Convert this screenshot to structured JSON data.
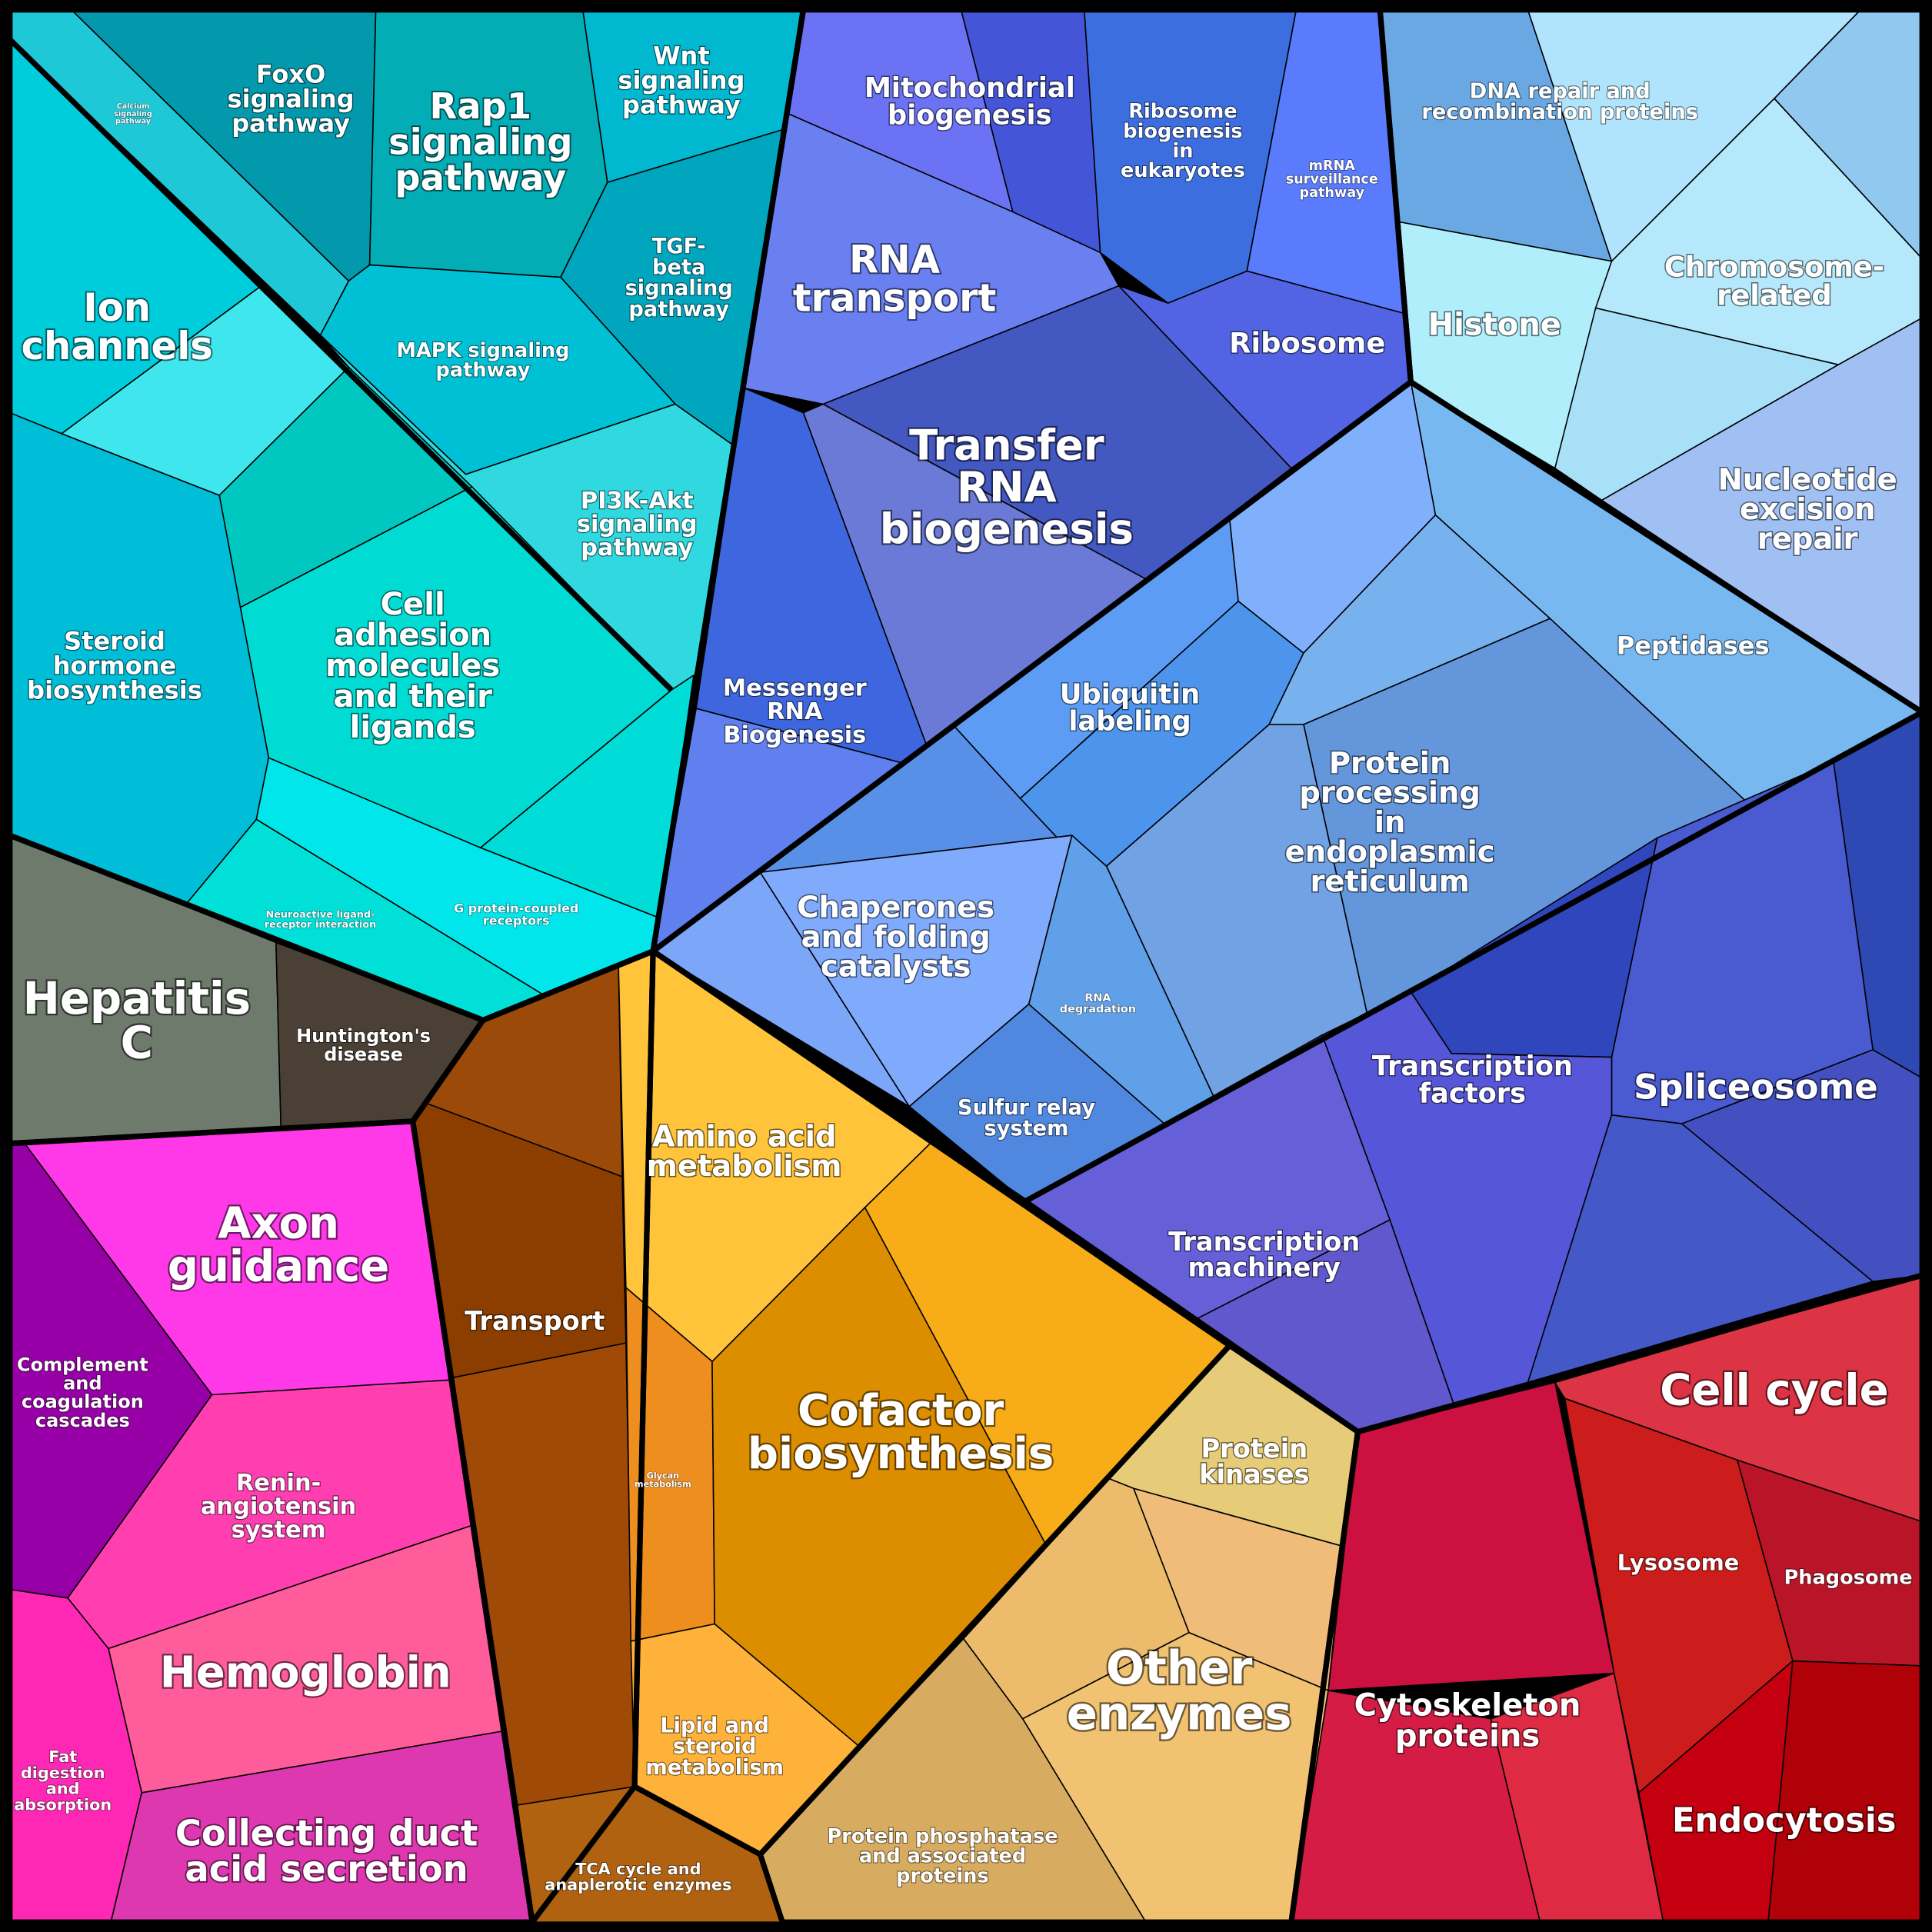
{
  "cells": [
    {
      "id": "calcium",
      "label": "Calcium\nsignaling\npathway",
      "color": "#1fc8d6"
    },
    {
      "id": "foxo",
      "label": "FoxO\nsignaling\npathway",
      "color": "#0399ac"
    },
    {
      "id": "rap1",
      "label": "Rap1\nsignaling\npathway",
      "color": "#02adb6"
    },
    {
      "id": "wnt",
      "label": "Wnt\nsignaling\npathway",
      "color": "#00b8d0"
    },
    {
      "id": "tgf",
      "label": "TGF-\nbeta\nsignaling\npathway",
      "color": "#00a6bd"
    },
    {
      "id": "mapk",
      "label": "MAPK signaling\npathway",
      "color": "#00c0d6"
    },
    {
      "id": "pi3k",
      "label": "PI3K-Akt\nsignaling\npathway",
      "color": "#30d9e0"
    },
    {
      "id": "ion",
      "label": "Ion\nchannels",
      "color": "#00cddb"
    },
    {
      "id": "ion2",
      "label": "",
      "color": "#40e6ee"
    },
    {
      "id": "cam1",
      "label": "",
      "color": "#00c8c0"
    },
    {
      "id": "cam",
      "label": "Cell\nadhesion\nmolecules\nand their\nligands",
      "color": "#00dcd4"
    },
    {
      "id": "cam3",
      "label": "",
      "color": "#00dcd8"
    },
    {
      "id": "gpcr",
      "label": "G protein-coupled\nreceptors",
      "color": "#00e6ea"
    },
    {
      "id": "neuro",
      "label": "Neuroactive ligand-\nreceptor interaction",
      "color": "#00e0d8"
    },
    {
      "id": "steroid",
      "label": "Steroid\nhormone\nbiosynthesis",
      "color": "#00bdd8"
    },
    {
      "id": "hepc",
      "label": "Hepatitis\nC",
      "color": "#6e7b6c"
    },
    {
      "id": "hunt",
      "label": "Huntington's\ndisease",
      "color": "#4a4035"
    },
    {
      "id": "complement",
      "label": "Complement\nand\ncoagulation\ncascades",
      "color": "#9600a6"
    },
    {
      "id": "axon",
      "label": "Axon\nguidance",
      "color": "#ff38e8"
    },
    {
      "id": "renin",
      "label": "Renin-\nangiotensin\nsystem",
      "color": "#ff3fb0"
    },
    {
      "id": "hemo",
      "label": "Hemoglobin",
      "color": "#ff5c9c"
    },
    {
      "id": "fat",
      "label": "Fat\ndigestion\nand\nabsorption",
      "color": "#ff28b4"
    },
    {
      "id": "collecting",
      "label": "Collecting duct\nacid secretion",
      "color": "#de38b0"
    },
    {
      "id": "tr1",
      "label": "",
      "color": "#9c4a0a"
    },
    {
      "id": "transport",
      "label": "Transport",
      "color": "#8b3e00"
    },
    {
      "id": "tr3",
      "label": "",
      "color": "#a04a08"
    },
    {
      "id": "tca",
      "label": "TCA cycle and\nanaplerotic enzymes",
      "color": "#b06210"
    },
    {
      "id": "amino",
      "label": "Amino acid\nmetabolism",
      "color": "#ffc43a"
    },
    {
      "id": "glycan",
      "label": "Glycan\nmetabolism",
      "color": "#ee8e1e"
    },
    {
      "id": "cofactor",
      "label": "Cofactor\nbiosynthesis",
      "color": "#dd8e00"
    },
    {
      "id": "orange2",
      "label": "",
      "color": "#f8ac18"
    },
    {
      "id": "lipid",
      "label": "Lipid and\nsteroid\nmetabolism",
      "color": "#ffb23a"
    },
    {
      "id": "kinases",
      "label": "Protein\nkinases",
      "color": "#e6cc78"
    },
    {
      "id": "oe1",
      "label": "",
      "color": "#f0bc7a"
    },
    {
      "id": "oe2",
      "label": "",
      "color": "#ecbc6c"
    },
    {
      "id": "other",
      "label": "Other\nenzymes",
      "color": "#f0c272"
    },
    {
      "id": "phosphatase",
      "label": "Protein phosphatase\nand associated\nproteins",
      "color": "#d8ac60"
    },
    {
      "id": "cyto",
      "label": "Cytoskeleton\nproteins",
      "color": "#cc1040"
    },
    {
      "id": "cyto2",
      "label": "",
      "color": "#d41c44"
    },
    {
      "id": "cyto3",
      "label": "",
      "color": "#de2a42"
    },
    {
      "id": "cellcycle",
      "label": "Cell cycle",
      "color": "#dc3444"
    },
    {
      "id": "lysosome",
      "label": "Lysosome",
      "color": "#cc1c1c"
    },
    {
      "id": "phagosome",
      "label": "Phagosome",
      "color": "#ba1428"
    },
    {
      "id": "endo",
      "label": "Endocytosis",
      "color": "#c40010"
    },
    {
      "id": "endo2",
      "label": "",
      "color": "#b00008"
    },
    {
      "id": "mito",
      "label": "Mitochondrial\nbiogenesis",
      "color": "#6c72f4"
    },
    {
      "id": "mito2",
      "label": "",
      "color": "#4455d8"
    },
    {
      "id": "ribobio",
      "label": "Ribosome\nbiogenesis\nin\neukaryotes",
      "color": "#3c6ee0"
    },
    {
      "id": "mrnasurv",
      "label": "mRNA\nsurveillance\npathway",
      "color": "#5a7cfc"
    },
    {
      "id": "rnatransport",
      "label": "RNA\ntransport",
      "color": "#6a80f0"
    },
    {
      "id": "ribosome",
      "label": "Ribosome",
      "color": "#5264e4"
    },
    {
      "id": "trna",
      "label": "Transfer\nRNA\nbiogenesis",
      "color": "#4458c2"
    },
    {
      "id": "trna2",
      "label": "",
      "color": "#6a7ad6"
    },
    {
      "id": "mrnabio",
      "label": "Messenger\nRNA\nBiogenesis",
      "color": "#3e66de"
    },
    {
      "id": "mrnabio2",
      "label": "",
      "color": "#6080f0"
    },
    {
      "id": "dnarepair",
      "label": "DNA repair and\nrecombination proteins",
      "color": "#6aa8e4"
    },
    {
      "id": "dna2",
      "label": "",
      "color": "#b0e4fc"
    },
    {
      "id": "dna3",
      "label": "",
      "color": "#90c8f0"
    },
    {
      "id": "histone",
      "label": "Histone",
      "color": "#b0eefc"
    },
    {
      "id": "chromosome",
      "label": "Chromosome-\nrelated",
      "color": "#b4e8fa"
    },
    {
      "id": "chrom2",
      "label": "",
      "color": "#a8e0f8"
    },
    {
      "id": "nucleotide",
      "label": "Nucleotide\nexcision\nrepair",
      "color": "#a0c0f4"
    },
    {
      "id": "peptidases",
      "label": "Peptidases",
      "color": "#78b8f0"
    },
    {
      "id": "lb1",
      "label": "",
      "color": "#80b0fc"
    },
    {
      "id": "ubiquitin",
      "label": "Ubiquitin\nlabeling",
      "color": "#5c9cf4"
    },
    {
      "id": "ubiq2",
      "label": "",
      "color": "#4c94ec"
    },
    {
      "id": "lb2",
      "label": "",
      "color": "#78b2ee"
    },
    {
      "id": "pp",
      "label": "",
      "color": "#6496dc"
    },
    {
      "id": "pp2",
      "label": "Protein\nprocessing\nin\nendoplasmic\nreticulum",
      "color": "#70a2e4"
    },
    {
      "id": "chap1",
      "label": "",
      "color": "#5890e8"
    },
    {
      "id": "chap2",
      "label": "",
      "color": "#7ca6f8"
    },
    {
      "id": "chaperones",
      "label": "Chaperones\nand folding\ncatalysts",
      "color": "#80aafc"
    },
    {
      "id": "rnadeg",
      "label": "RNA\ndegradation",
      "color": "#60a0e8"
    },
    {
      "id": "sulfur",
      "label": "Sulfur relay\nsystem",
      "color": "#5088e0"
    },
    {
      "id": "spl1",
      "label": "",
      "color": "#2e48b4"
    },
    {
      "id": "spliceosome",
      "label": "Spliceosome",
      "color": "#4a5ad0"
    },
    {
      "id": "tf1",
      "label": "",
      "color": "#2f46bc"
    },
    {
      "id": "tf",
      "label": "Transcription\nfactors",
      "color": "#5656d8"
    },
    {
      "id": "tm",
      "label": "Transcription\nmachinery",
      "color": "#6660d8"
    },
    {
      "id": "tm2",
      "label": "",
      "color": "#6058cc"
    },
    {
      "id": "spl2",
      "label": "",
      "color": "#4458c8"
    },
    {
      "id": "spl3",
      "label": "",
      "color": "#4450c0"
    }
  ]
}
